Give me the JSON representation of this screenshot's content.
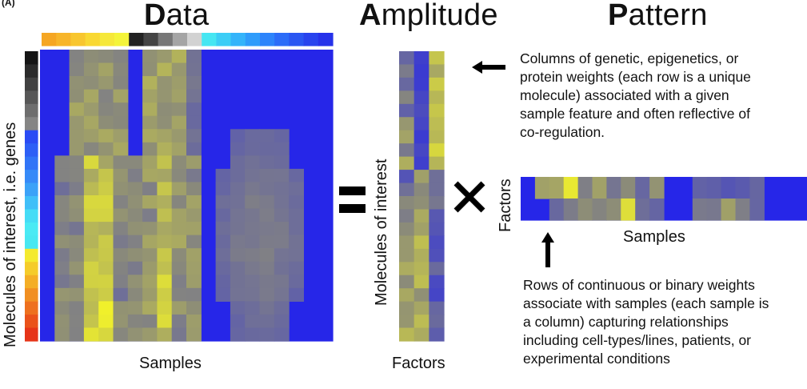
{
  "panel_label": "(A)",
  "titles": {
    "data": {
      "cap": "D",
      "rest": "ata"
    },
    "amplitude": {
      "cap": "A",
      "rest": "mplitude"
    },
    "pattern": {
      "cap": "P",
      "rest": "attern"
    }
  },
  "data_matrix": {
    "x_label": "Samples",
    "y_label": "Molecules of interest, i.e. genes"
  },
  "amplitude_matrix": {
    "x_label": "Factors",
    "y_label": "Molecules of interest"
  },
  "pattern_matrix": {
    "x_label": "Samples",
    "y_label": "Factors"
  },
  "operators": {
    "equals": "=",
    "times": "×"
  },
  "notes": {
    "amplitude": [
      "Columns of genetic, epigenetics, or",
      "protein weights (each row is a unique",
      "molecule) associated with a given",
      "sample feature and often reflective of",
      "co-regulation."
    ],
    "pattern": [
      "Rows of continuous or binary weights",
      "associate with samples (each sample is",
      "a column) capturing relationships",
      "including cell-types/lines, patients, or",
      "experimental conditions"
    ]
  },
  "colors": {
    "matrix_blue": "#2626e8",
    "matrix_yellow": "#f2f22a",
    "matrix_gray": "#8c8c78",
    "sample_bar": [
      "#f5a623",
      "#f7b52a",
      "#f8c62e",
      "#f9d832",
      "#f6e83a",
      "#f4f43a",
      "#222222",
      "#444444",
      "#777777",
      "#a5a5a5",
      "#d2d2d2",
      "#46e6f2",
      "#3ccdf6",
      "#34b4fa",
      "#2f9cfb",
      "#2d84fb",
      "#2c6cf8",
      "#2a56f2",
      "#2843ee",
      "#2632ea"
    ],
    "gene_bar": [
      "#151515",
      "#2b2b2b",
      "#414141",
      "#575757",
      "#6e6e6e",
      "#858585",
      "#2a4bf4",
      "#2d5ff6",
      "#3174f7",
      "#368af8",
      "#3ba2f8",
      "#40bff8",
      "#45dcf6",
      "#4aeaf4",
      "#48e8f2",
      "#f4ea2f",
      "#f5cc2a",
      "#f4ae25",
      "#f18f21",
      "#ee701e",
      "#ea521a",
      "#e63418"
    ]
  }
}
